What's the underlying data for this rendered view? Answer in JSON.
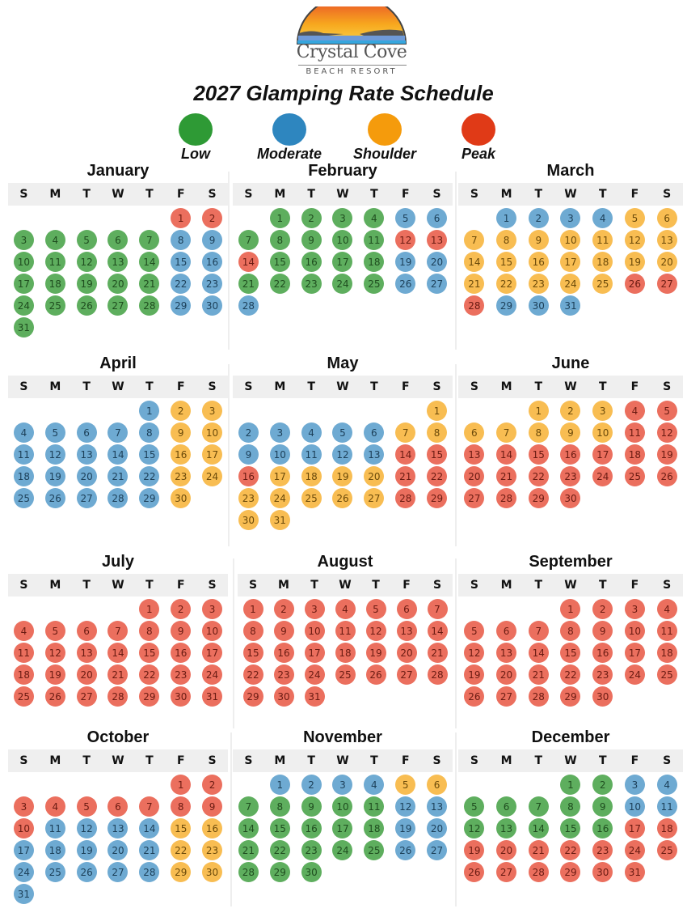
{
  "brand": {
    "name": "Crystal Cove",
    "subtitle": "BEACH RESORT"
  },
  "title": "2027 Glamping Rate Schedule",
  "legend": [
    {
      "code": "L",
      "label": "Low",
      "color": "#2e9a35"
    },
    {
      "code": "M",
      "label": "Moderate",
      "color": "#2e86bf"
    },
    {
      "code": "S",
      "label": "Shoulder",
      "color": "#f59b0c"
    },
    {
      "code": "P",
      "label": "Peak",
      "color": "#e03a17"
    }
  ],
  "weekdays": [
    "S",
    "M",
    "T",
    "W",
    "T",
    "F",
    "S"
  ],
  "months": [
    {
      "name": "January",
      "start": 5,
      "rates": "PPLLLLLMMLLLLLMMLLLLLMMLLLLLMML"
    },
    {
      "name": "February",
      "start": 1,
      "rates": "LLLLMMLLLLLPPPLLLLMMLLLLLMMM"
    },
    {
      "name": "March",
      "start": 1,
      "rates": "MMMMSSSSSSSSSSSSSSSSSSSSSPPPMMM"
    },
    {
      "name": "April",
      "start": 4,
      "rates": "MSSMMMMMSSMMMMMSSMMMMMSSMMMMMS"
    },
    {
      "name": "May",
      "start": 6,
      "rates": "SMMMMMSSMMMMMPPPSSSSPPSSSSSPPSS"
    },
    {
      "name": "June",
      "start": 2,
      "rates": "SSSPPSSSSSPPPPPPPPPPPPPPPPPPPP"
    },
    {
      "name": "July",
      "start": 4,
      "rates": "PPPPPPPPPPPPPPPPPPPPPPPPPPPPPPP"
    },
    {
      "name": "August",
      "start": 0,
      "rates": "PPPPPPPPPPPPPPPPPPPPPPPPPPPPPPP"
    },
    {
      "name": "September",
      "start": 3,
      "rates": "PPPPPPPPPPPPPPPPPPPPPPPPPPPPPP"
    },
    {
      "name": "October",
      "start": 5,
      "rates": "PPPPPPPPPPMMMMSSMMMMMSSMMMMMSSM"
    },
    {
      "name": "November",
      "start": 1,
      "rates": "MMMMSSLLLLLMMLLLLLMMLLLLLMMLLL"
    },
    {
      "name": "December",
      "start": 3,
      "rates": "LLMMLLLLLMMLLLLLPPPPPPPPPPPPPPP"
    }
  ]
}
